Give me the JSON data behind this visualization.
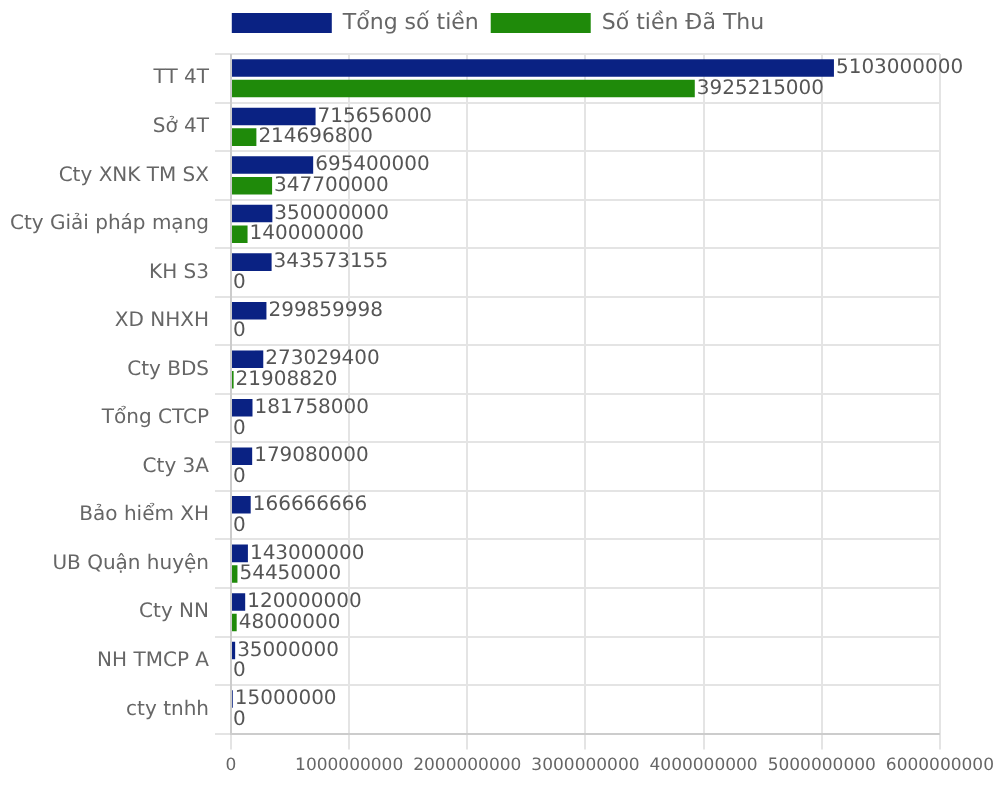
{
  "chart_data": {
    "type": "bar",
    "orientation": "horizontal",
    "legend": "top",
    "grid": true,
    "data_labels": true,
    "categories": [
      "TT 4T",
      "Sở 4T",
      "Cty XNK TM SX",
      "Cty Giải pháp mạng",
      "KH S3",
      "XD NHXH",
      "Cty BDS",
      "Tổng CTCP",
      "Cty 3A",
      "Bảo hiểm XH",
      "UB Quận huyện",
      "Cty NN",
      "NH TMCP A",
      "cty tnhh"
    ],
    "series": [
      {
        "name": "Tổng số tiền",
        "color": "#0a2283",
        "values": [
          5103000000,
          715656000,
          695400000,
          350000000,
          343573155,
          299859998,
          273029400,
          181758000,
          179080000,
          166666666,
          143000000,
          120000000,
          35000000,
          15000000
        ]
      },
      {
        "name": "Số tiền Đã Thu",
        "color": "#1f8a0a",
        "values": [
          3925215000,
          214696800,
          347700000,
          140000000,
          0,
          0,
          21908820,
          0,
          0,
          0,
          54450000,
          48000000,
          0,
          0
        ]
      }
    ],
    "xlim": [
      0,
      6000000000
    ],
    "xticks": [
      0,
      1000000000,
      2000000000,
      3000000000,
      4000000000,
      5000000000,
      6000000000
    ]
  }
}
